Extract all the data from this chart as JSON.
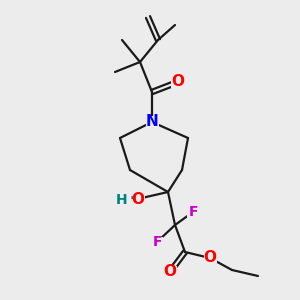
{
  "bg_color": "#ececec",
  "bond_color": "#1a1a1a",
  "bond_width": 1.6,
  "atom_colors": {
    "O": "#ff0000",
    "N": "#0000ff",
    "F": "#cc00cc",
    "HO_H": "#008080",
    "HO_O": "#ff0000"
  },
  "font_size": 9,
  "fig_size": [
    3.0,
    3.0
  ],
  "dpi": 100
}
